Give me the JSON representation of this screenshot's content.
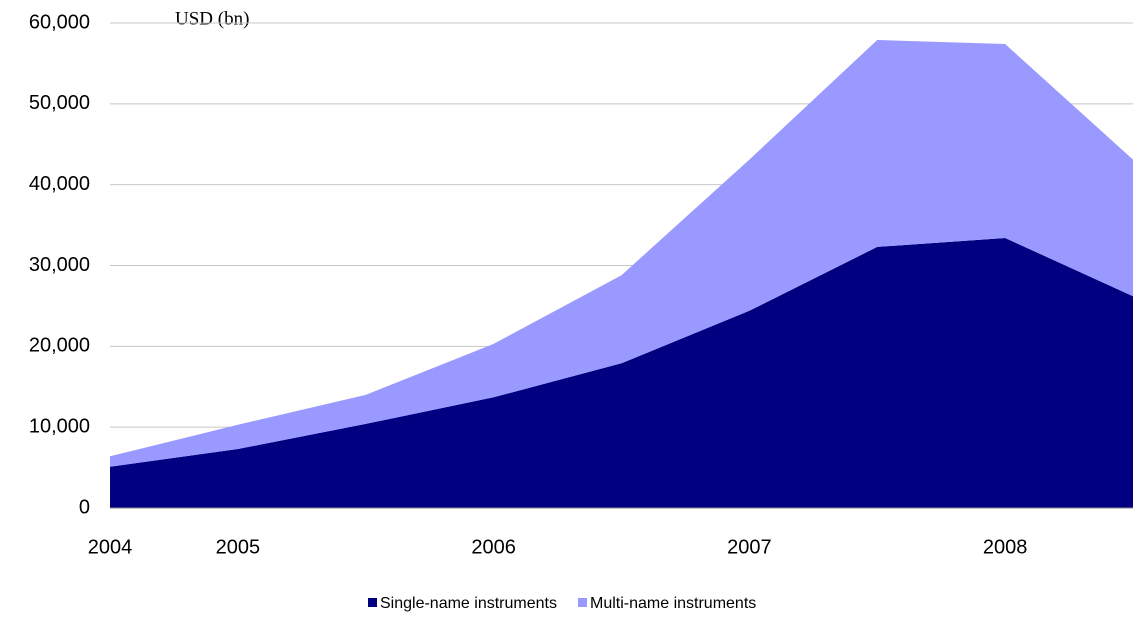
{
  "chart_data": {
    "type": "stacked-area",
    "annotation": "USD (bn)",
    "categories": [
      "2004",
      "2005",
      null,
      "2006",
      null,
      "2007",
      null,
      "2008",
      null
    ],
    "series": [
      {
        "name": "Single-name instruments",
        "color": "#000080",
        "values": [
          5100,
          7300,
          10400,
          13700,
          17900,
          24400,
          32300,
          33400,
          26200
        ]
      },
      {
        "name": "Multi-name instruments",
        "color": "#9999ff",
        "values": [
          1300,
          3000,
          3600,
          6600,
          10900,
          18700,
          25600,
          24000,
          16900
        ]
      }
    ],
    "ylim": [
      0,
      60000
    ],
    "yticks": [
      0,
      {
        "value": 10000,
        "label": "10,000"
      },
      {
        "value": 20000,
        "label": "20,000"
      },
      {
        "value": 30000,
        "label": "30,000"
      },
      {
        "value": 40000,
        "label": "40,000"
      },
      {
        "value": 50000,
        "label": "50,000"
      },
      {
        "value": 60000,
        "label": "60,000"
      }
    ],
    "grid": true
  }
}
